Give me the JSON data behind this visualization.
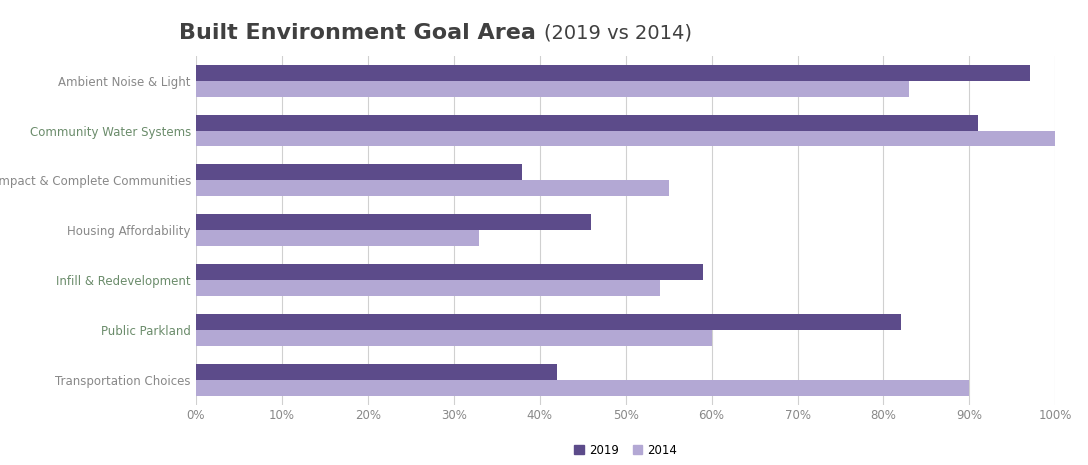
{
  "title_main": "Built Environment Goal Area",
  "title_sub": "(2019 vs 2014)",
  "categories": [
    "Ambient Noise & Light",
    "Community Water Systems",
    "Compact & Complete Communities",
    "Housing Affordability",
    "Infill & Redevelopment",
    "Public Parkland",
    "Transportation Choices"
  ],
  "values_2019": [
    97,
    91,
    38,
    46,
    59,
    82,
    42
  ],
  "values_2014": [
    83,
    100,
    55,
    33,
    54,
    60,
    90
  ],
  "color_2019": "#5c4b8a",
  "color_2014": "#b3a8d4",
  "xlim": [
    0,
    100
  ],
  "xtick_labels": [
    "0%",
    "10%",
    "20%",
    "30%",
    "40%",
    "50%",
    "60%",
    "70%",
    "80%",
    "90%",
    "100%"
  ],
  "xtick_values": [
    0,
    10,
    20,
    30,
    40,
    50,
    60,
    70,
    80,
    90,
    100
  ],
  "bar_height": 0.32,
  "legend_labels": [
    "2019",
    "2014"
  ],
  "title_fontsize": 16,
  "axis_label_fontsize": 8.5,
  "tick_fontsize": 8.5,
  "background_color": "#ffffff",
  "grid_color": "#d0d0d0",
  "ytick_color": "#888888",
  "ytick_color_special": "#6b8c6b"
}
